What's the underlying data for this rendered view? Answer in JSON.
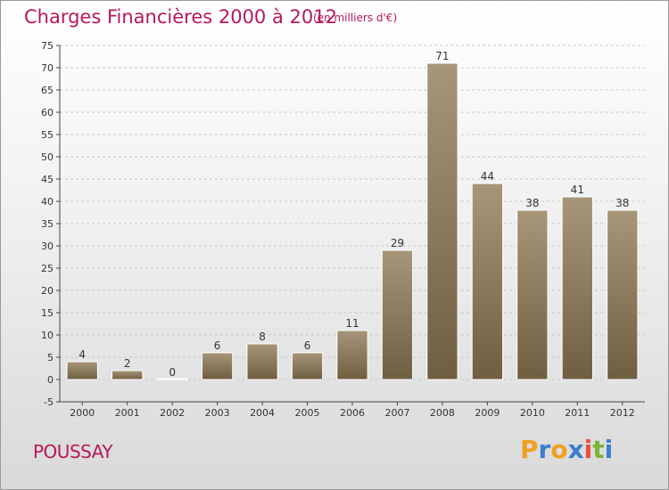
{
  "header": {
    "title": "Charges Financières 2000 à 2012",
    "subtitle": "(en milliers d'€)"
  },
  "footer": {
    "commune": "POUSSAY",
    "brand": {
      "letters": [
        "P",
        "r",
        "o",
        "x",
        "i",
        "t",
        "i"
      ],
      "colors": [
        "#f0a020",
        "#3a7fd0",
        "#f0a020",
        "#3a7fd0",
        "#e8503a",
        "#7ab534",
        "#3a7fd0"
      ]
    }
  },
  "chart_data": {
    "type": "bar",
    "title": "Charges Financières 2000 à 2012",
    "subtitle": "(en milliers d'€)",
    "categories": [
      "2000",
      "2001",
      "2002",
      "2003",
      "2004",
      "2005",
      "2006",
      "2007",
      "2008",
      "2009",
      "2010",
      "2011",
      "2012"
    ],
    "values": [
      4,
      2,
      0,
      6,
      8,
      6,
      11,
      29,
      71,
      44,
      38,
      41,
      38
    ],
    "ylim": [
      -5,
      75
    ],
    "yticks": [
      -5,
      0,
      5,
      10,
      15,
      20,
      25,
      30,
      35,
      40,
      45,
      50,
      55,
      60,
      65,
      70,
      75
    ],
    "grid": true,
    "bar_color_top": "#a8967a",
    "bar_color_bottom": "#6f5e40",
    "axis_color": "#444444"
  }
}
